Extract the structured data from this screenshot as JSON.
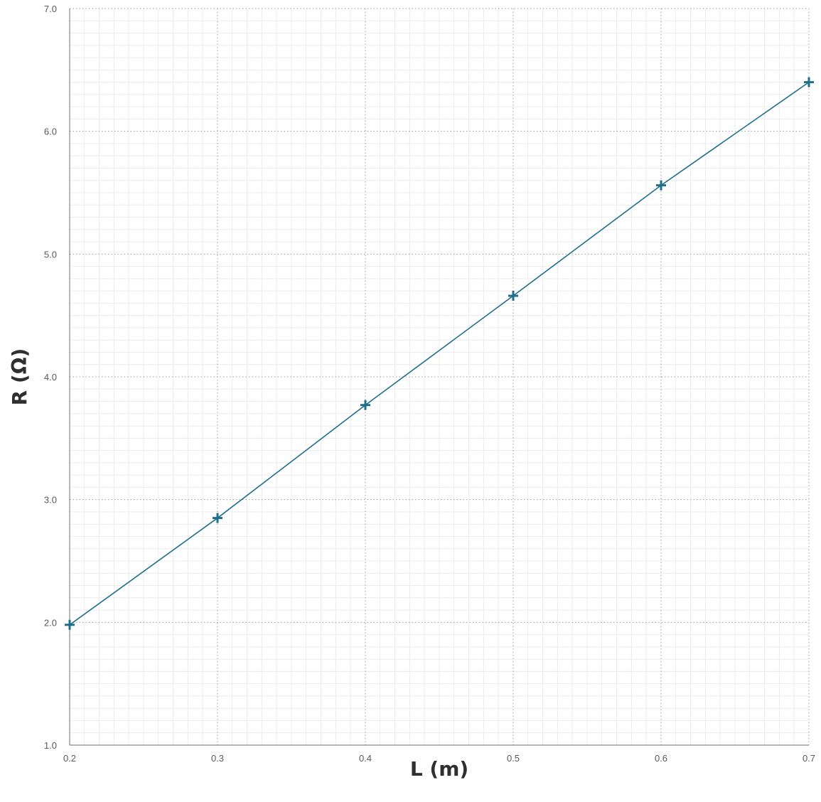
{
  "chart_data": {
    "type": "line",
    "xlabel": "L (m)",
    "ylabel": "R (Ω)",
    "xlim": [
      0.2,
      0.7
    ],
    "ylim": [
      1.0,
      7.0
    ],
    "x_ticks": [
      "0.2",
      "0.3",
      "0.4",
      "0.5",
      "0.6",
      "0.7"
    ],
    "y_ticks": [
      "1.0",
      "2.0",
      "3.0",
      "4.0",
      "5.0",
      "6.0",
      "7.0"
    ],
    "grid": true,
    "series": [
      {
        "color": "#1f6f8b",
        "marker": "plus",
        "x": [
          0.2,
          0.3,
          0.4,
          0.5,
          0.6,
          0.7
        ],
        "y": [
          1.98,
          2.85,
          3.77,
          4.66,
          5.56,
          6.4
        ]
      }
    ]
  }
}
